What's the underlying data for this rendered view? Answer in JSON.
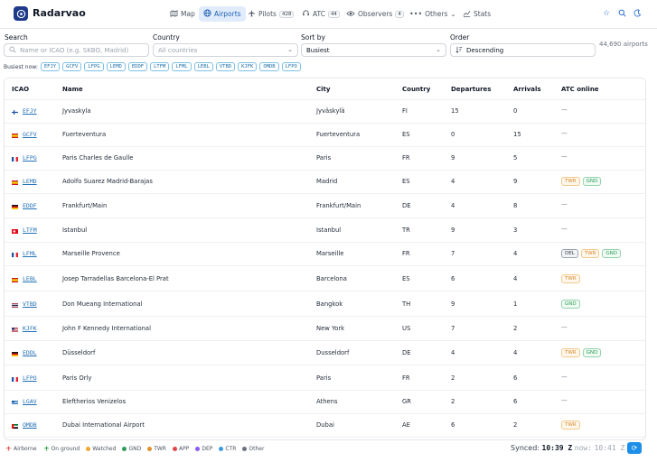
{
  "app": {
    "brand": "Radarvao",
    "logo_icon": "radar-icon"
  },
  "nav": [
    {
      "label": "Map",
      "icon": "map-icon"
    },
    {
      "label": "Airports",
      "icon": "globe-icon",
      "active": true
    },
    {
      "label": "Pilots",
      "icon": "plane-icon",
      "badge": "428"
    },
    {
      "label": "ATC",
      "icon": "headset-icon",
      "badge": "44"
    },
    {
      "label": "Observers",
      "icon": "eye-icon",
      "badge": "4"
    },
    {
      "label": "Others",
      "icon": "dots-icon",
      "dropdown": true
    },
    {
      "label": "Stats",
      "icon": "chart-icon"
    }
  ],
  "filters": {
    "search": {
      "label": "Search",
      "placeholder": "Name or ICAO (e.g. SKBO, Madrid)"
    },
    "country": {
      "label": "Country",
      "value": "All countries"
    },
    "sort": {
      "label": "Sort by",
      "value": "Busiest"
    },
    "order": {
      "label": "Order",
      "value": "Descending"
    },
    "count": "44,690 airports"
  },
  "busiest": {
    "label": "Busiest now:",
    "codes": [
      "EFJY",
      "GCFV",
      "LFPG",
      "LEMD",
      "EDDF",
      "LTFM",
      "LFML",
      "LEBL",
      "VTBD",
      "KJFK",
      "OMDB",
      "LFPO"
    ]
  },
  "table": {
    "headers": {
      "icao": "ICAO",
      "name": "Name",
      "city": "City",
      "country": "Country",
      "departures": "Departures",
      "arrivals": "Arrivals",
      "atc": "ATC online"
    },
    "rows": [
      {
        "icao": "EFJY",
        "name": "Jyvaskyla",
        "city": "Jyväskylä",
        "country": "FI",
        "departures": "15",
        "arrivals": "0",
        "atc": []
      },
      {
        "icao": "GCFV",
        "name": "Fuerteventura",
        "city": "Fuerteventura",
        "country": "ES",
        "departures": "0",
        "arrivals": "15",
        "atc": []
      },
      {
        "icao": "LFPG",
        "name": "Paris Charles de Gaulle",
        "city": "Paris",
        "country": "FR",
        "departures": "9",
        "arrivals": "5",
        "atc": []
      },
      {
        "icao": "LEMD",
        "name": "Adolfo Suarez Madrid-Barajas",
        "city": "Madrid",
        "country": "ES",
        "departures": "4",
        "arrivals": "9",
        "atc": [
          "TWR",
          "GND"
        ]
      },
      {
        "icao": "EDDF",
        "name": "Frankfurt/Main",
        "city": "Frankfurt/Main",
        "country": "DE",
        "departures": "4",
        "arrivals": "8",
        "atc": []
      },
      {
        "icao": "LTFM",
        "name": "Istanbul",
        "city": "Istanbul",
        "country": "TR",
        "departures": "9",
        "arrivals": "3",
        "atc": []
      },
      {
        "icao": "LFML",
        "name": "Marseille Provence",
        "city": "Marseille",
        "country": "FR",
        "departures": "7",
        "arrivals": "4",
        "atc": [
          "DEL",
          "TWR",
          "GND"
        ]
      },
      {
        "icao": "LEBL",
        "name": "Josep Tarradellas Barcelona-El Prat",
        "city": "Barcelona",
        "country": "ES",
        "departures": "6",
        "arrivals": "4",
        "atc": [
          "TWR"
        ]
      },
      {
        "icao": "VTBD",
        "name": "Don Mueang International",
        "city": "Bangkok",
        "country": "TH",
        "departures": "9",
        "arrivals": "1",
        "atc": [
          "GND"
        ]
      },
      {
        "icao": "KJFK",
        "name": "John F Kennedy International",
        "city": "New York",
        "country": "US",
        "departures": "7",
        "arrivals": "2",
        "atc": []
      },
      {
        "icao": "EDDL",
        "name": "Düsseldorf",
        "city": "Dusseldorf",
        "country": "DE",
        "departures": "4",
        "arrivals": "4",
        "atc": [
          "TWR",
          "GND"
        ]
      },
      {
        "icao": "LFPO",
        "name": "Paris Orly",
        "city": "Paris",
        "country": "FR",
        "departures": "2",
        "arrivals": "6",
        "atc": []
      },
      {
        "icao": "LGAV",
        "name": "Eleftherios Venizelos",
        "city": "Athens",
        "country": "GR",
        "departures": "2",
        "arrivals": "6",
        "atc": []
      },
      {
        "icao": "OMDB",
        "name": "Dubai International Airport",
        "city": "Dubai",
        "country": "AE",
        "departures": "6",
        "arrivals": "2",
        "atc": [
          "TWR"
        ]
      }
    ],
    "empty_atc": "—"
  },
  "legend": [
    {
      "label": "Airborne",
      "icon": "plane-icon",
      "color": "#e53e3e"
    },
    {
      "label": "On ground",
      "icon": "plane-icon",
      "color": "#2f9a3a"
    },
    {
      "label": "Watched",
      "color": "#f0a830"
    },
    {
      "label": "GND",
      "color": "#2f9a5a"
    },
    {
      "label": "TWR",
      "color": "#e0902a"
    },
    {
      "label": "APP",
      "color": "#e04848"
    },
    {
      "label": "DEP",
      "color": "#8b5cf6"
    },
    {
      "label": "CTR",
      "color": "#3b9ae0"
    },
    {
      "label": "Other",
      "color": "#6b7280"
    }
  ],
  "status": {
    "synced_label": "Synced:",
    "synced_time": "10:39 Z",
    "now_label": "now:",
    "now_time": "10:41 Z"
  },
  "flags": {
    "FI": [
      "#ffffff",
      "#1e4fa8"
    ],
    "ES": [
      "#c8102e",
      "#f6c700"
    ],
    "FR": [
      "#1e4fa8",
      "#ffffff",
      "#e1242d"
    ],
    "DE": [
      "#111111",
      "#dd0000",
      "#ffce00"
    ],
    "TR": [
      "#e30a17",
      "#ffffff"
    ],
    "TH": [
      "#a51931",
      "#ffffff",
      "#2d2a4a"
    ],
    "US": [
      "#b22234",
      "#ffffff",
      "#3c3b6e"
    ],
    "GR": [
      "#0d5eaf",
      "#ffffff"
    ],
    "AE": [
      "#00732f",
      "#ffffff",
      "#000000",
      "#ff0000"
    ]
  }
}
